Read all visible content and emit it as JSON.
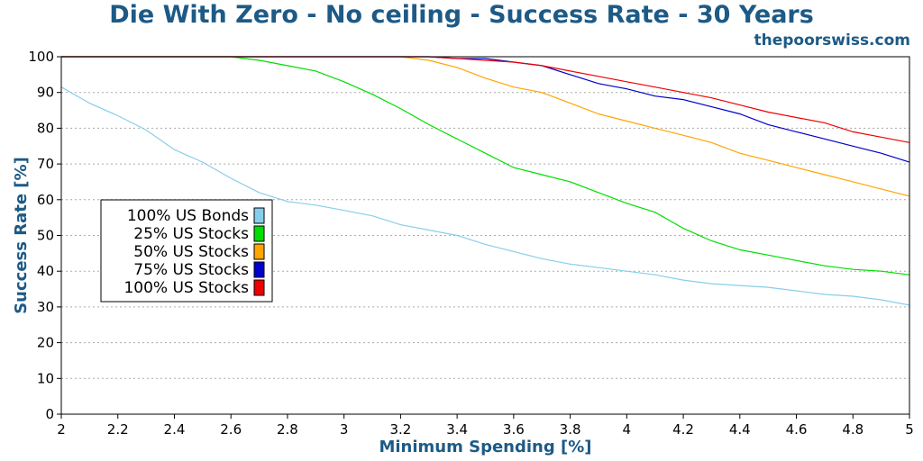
{
  "header": {
    "title": "Die With Zero - No ceiling - Success Rate - 30 Years",
    "source": "thepoorswiss.com"
  },
  "chart_data": {
    "type": "line",
    "title": "Die With Zero - No ceiling - Success Rate - 30 Years",
    "xlabel": "Minimum Spending [%]",
    "ylabel": "Success Rate [%]",
    "xlim": [
      2,
      5
    ],
    "ylim": [
      0,
      100
    ],
    "x_ticks": [
      "2",
      "2.2",
      "2.4",
      "2.6",
      "2.8",
      "3",
      "3.2",
      "3.4",
      "3.6",
      "3.8",
      "4",
      "4.2",
      "4.4",
      "4.6",
      "4.8",
      "5"
    ],
    "y_ticks": [
      "0",
      "10",
      "20",
      "30",
      "40",
      "50",
      "60",
      "70",
      "80",
      "90",
      "100"
    ],
    "grid": true,
    "legend_position": "left-center",
    "x": [
      2.0,
      2.1,
      2.2,
      2.3,
      2.4,
      2.5,
      2.6,
      2.7,
      2.8,
      2.9,
      3.0,
      3.1,
      3.2,
      3.3,
      3.4,
      3.5,
      3.6,
      3.7,
      3.8,
      3.9,
      4.0,
      4.1,
      4.2,
      4.3,
      4.4,
      4.5,
      4.6,
      4.7,
      4.8,
      4.9,
      5.0
    ],
    "series": [
      {
        "name": "100% US Bonds",
        "color": "#87ceeb",
        "values": [
          91.5,
          87,
          83.5,
          79.5,
          74,
          70.5,
          66,
          62,
          59.5,
          58.5,
          57,
          55.5,
          53,
          51.5,
          50,
          47.5,
          45.5,
          43.5,
          42,
          41,
          40,
          39,
          37.5,
          36.5,
          36,
          35.5,
          34.5,
          33.5,
          33,
          32,
          30.5
        ]
      },
      {
        "name": "25% US Stocks",
        "color": "#00dd00",
        "values": [
          100,
          100,
          100,
          100,
          100,
          100,
          100,
          99,
          97.5,
          96,
          93,
          89.5,
          85.5,
          81,
          77,
          73,
          69,
          67,
          65,
          62,
          59,
          56.5,
          52,
          48.5,
          46,
          44.5,
          43,
          41.5,
          40.5,
          40,
          39
        ]
      },
      {
        "name": "50% US Stocks",
        "color": "#ffa500",
        "values": [
          100,
          100,
          100,
          100,
          100,
          100,
          100,
          100,
          100,
          100,
          100,
          100,
          100,
          99,
          97,
          94,
          91.5,
          90,
          87,
          84,
          82,
          80,
          78,
          76,
          73,
          71,
          69,
          67,
          65,
          63,
          61
        ]
      },
      {
        "name": "75% US Stocks",
        "color": "#0000cc",
        "values": [
          100,
          100,
          100,
          100,
          100,
          100,
          100,
          100,
          100,
          100,
          100,
          100,
          100,
          100,
          99.5,
          99.5,
          98.5,
          97.5,
          95,
          92.5,
          91,
          89,
          88,
          86,
          84,
          81,
          79,
          77,
          75,
          73,
          70.5
        ]
      },
      {
        "name": "100% US Stocks",
        "color": "#ee0000",
        "values": [
          100,
          100,
          100,
          100,
          100,
          100,
          100,
          100,
          100,
          100,
          100,
          100,
          100,
          100,
          99.5,
          99,
          98.5,
          97.5,
          96,
          94.5,
          93,
          91.5,
          90,
          88.5,
          86.5,
          84.5,
          83,
          81.5,
          79,
          77.5,
          76
        ]
      }
    ]
  }
}
